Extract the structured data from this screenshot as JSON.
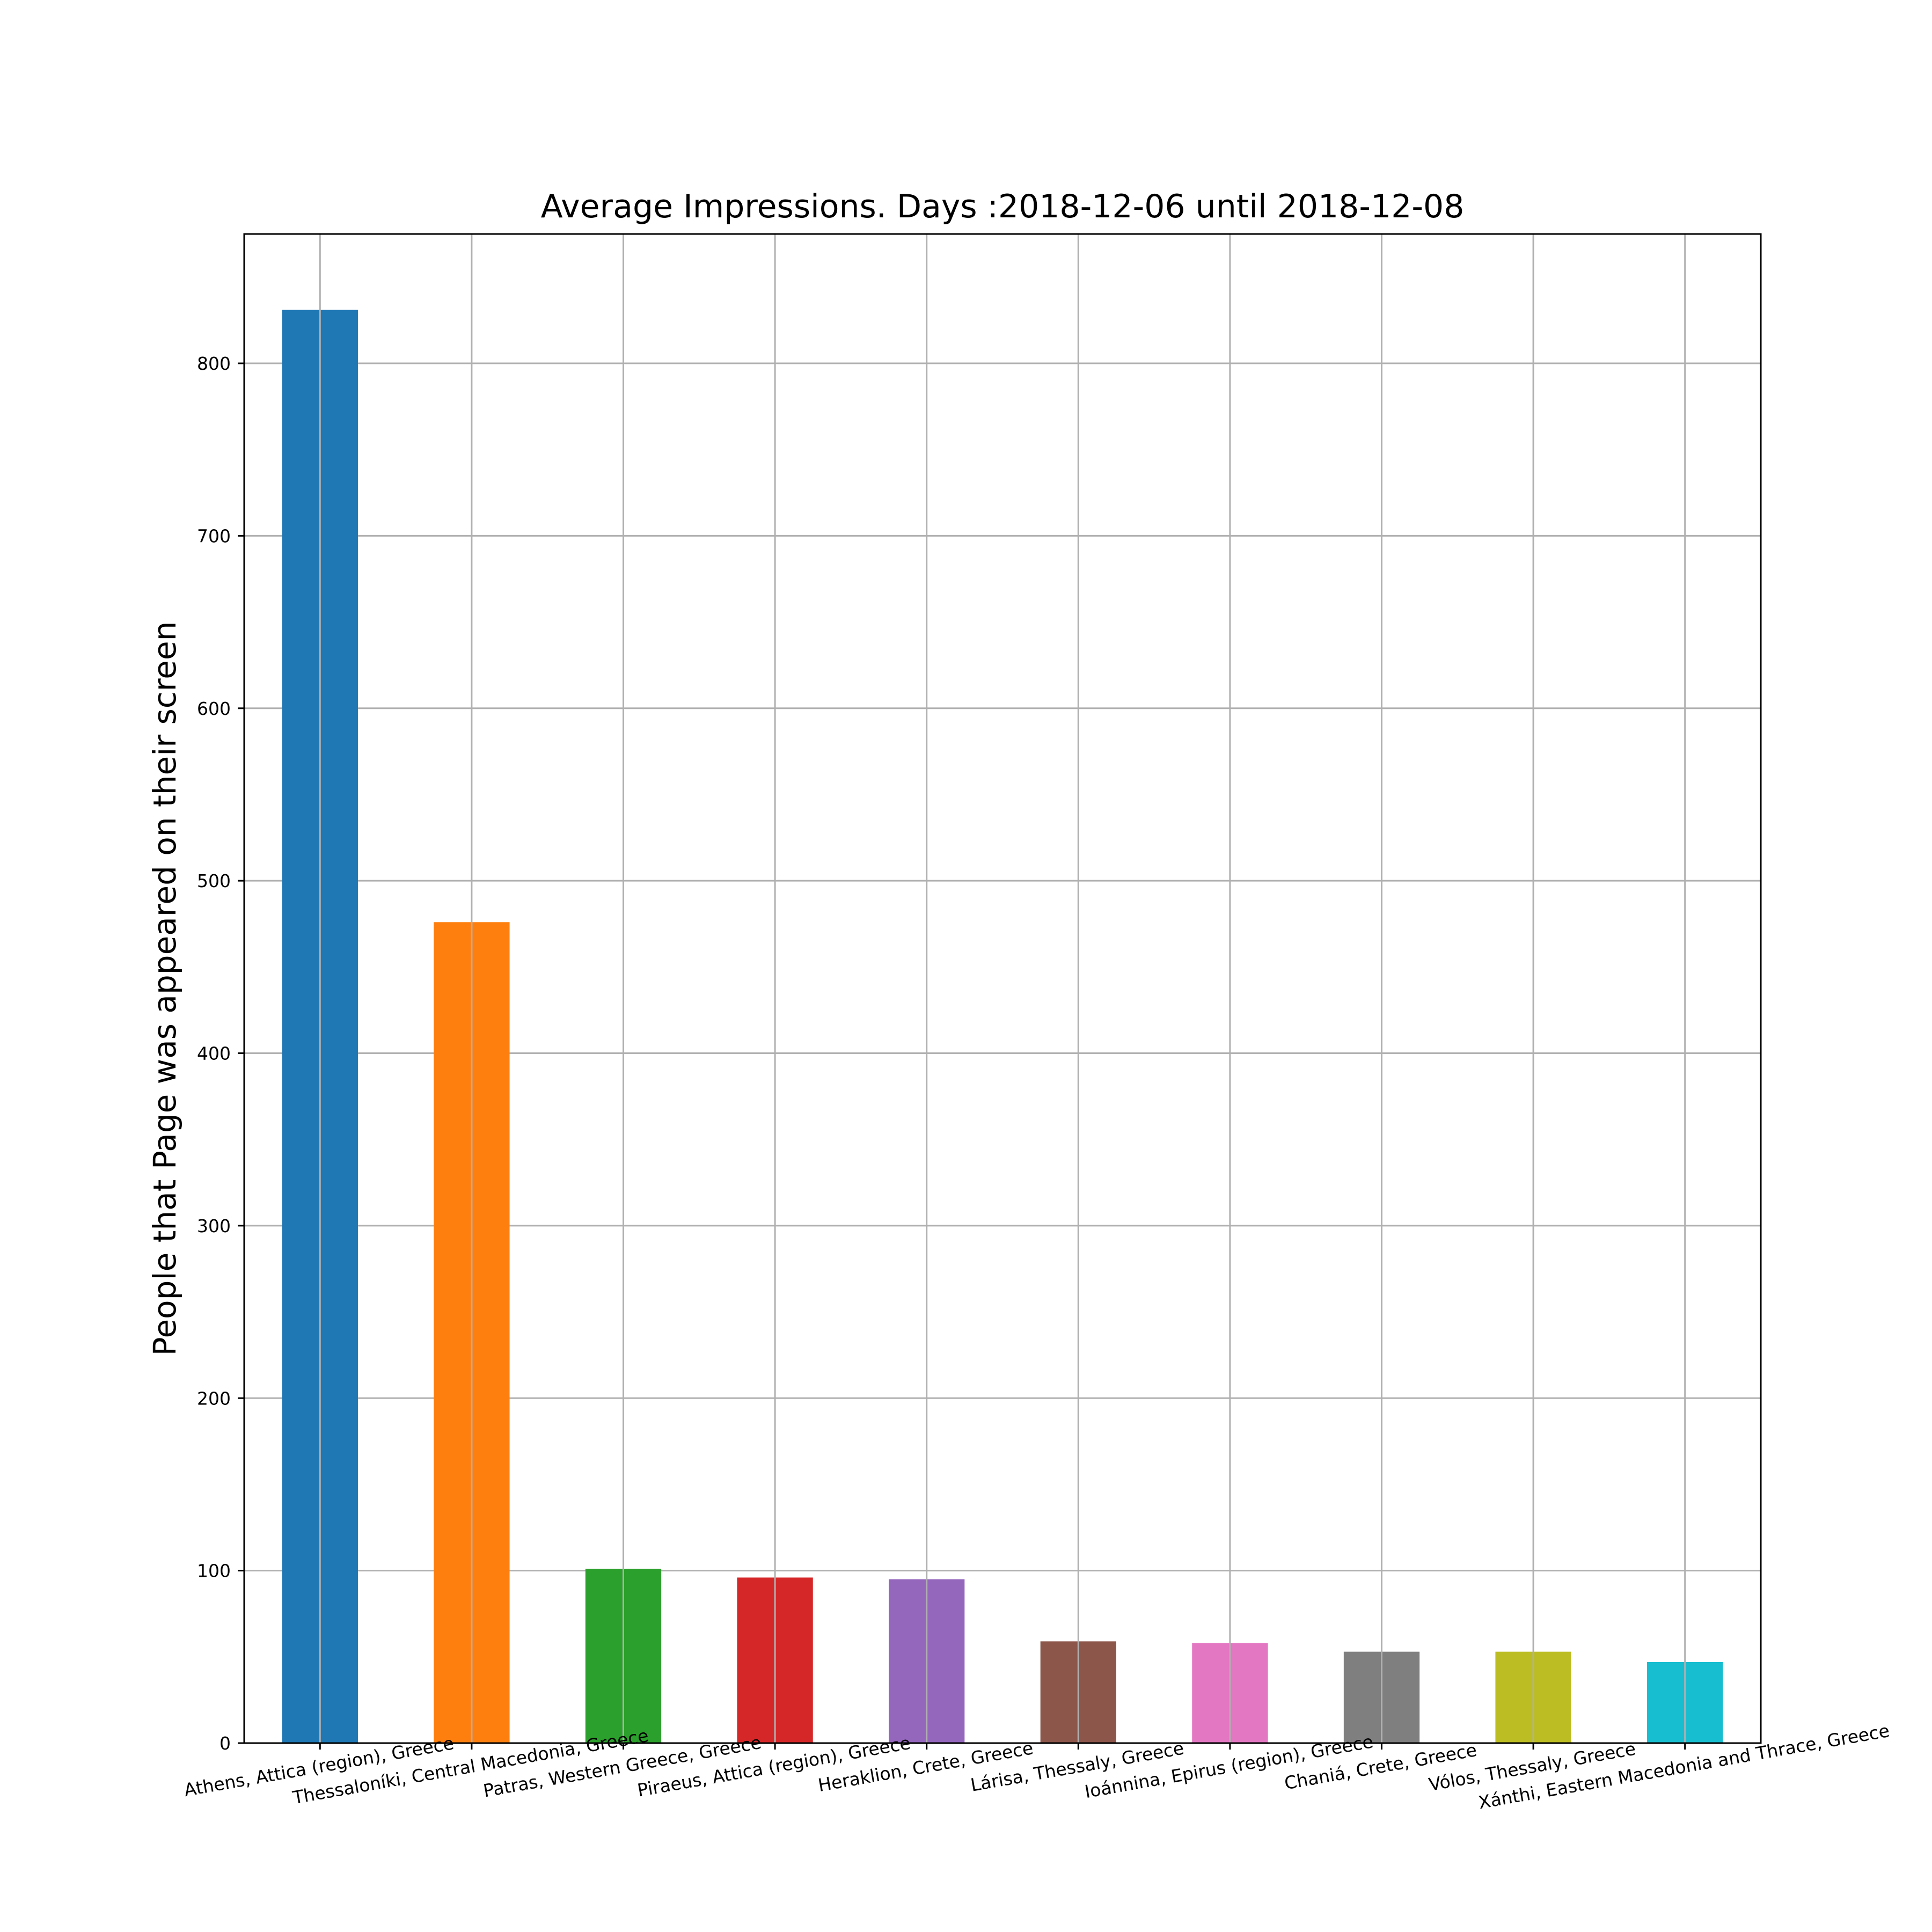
{
  "chart_data": {
    "type": "bar",
    "title": "Average Impressions. Days :2018-12-06 until 2018-12-08",
    "xlabel": "",
    "ylabel": "People that Page was appeared on their screen",
    "ylim": [
      0,
      875
    ],
    "yticks": [
      0,
      100,
      200,
      300,
      400,
      500,
      600,
      700,
      800
    ],
    "grid": true,
    "categories": [
      "Athens, Attica (region), Greece",
      "Thessaloníki, Central Macedonia, Greece",
      "Patras, Western Greece, Greece",
      "Piraeus, Attica (region), Greece",
      "Heraklion, Crete, Greece",
      "Lárisa, Thessaly, Greece",
      "Ioánnina, Epirus (region), Greece",
      "Chaniá, Crete, Greece",
      "Vólos, Thessaly, Greece",
      "Xánthi, Eastern Macedonia and Thrace, Greece"
    ],
    "values": [
      831,
      476,
      101,
      96,
      95,
      59,
      58,
      53,
      53,
      47
    ],
    "colors": [
      "#1f77b4",
      "#ff7f0e",
      "#2ca02c",
      "#d62728",
      "#9467bd",
      "#8c564b",
      "#e377c2",
      "#7f7f7f",
      "#bcbd22",
      "#17becf"
    ],
    "grid_color": "#b0b0b0",
    "axis_color": "#000000"
  }
}
